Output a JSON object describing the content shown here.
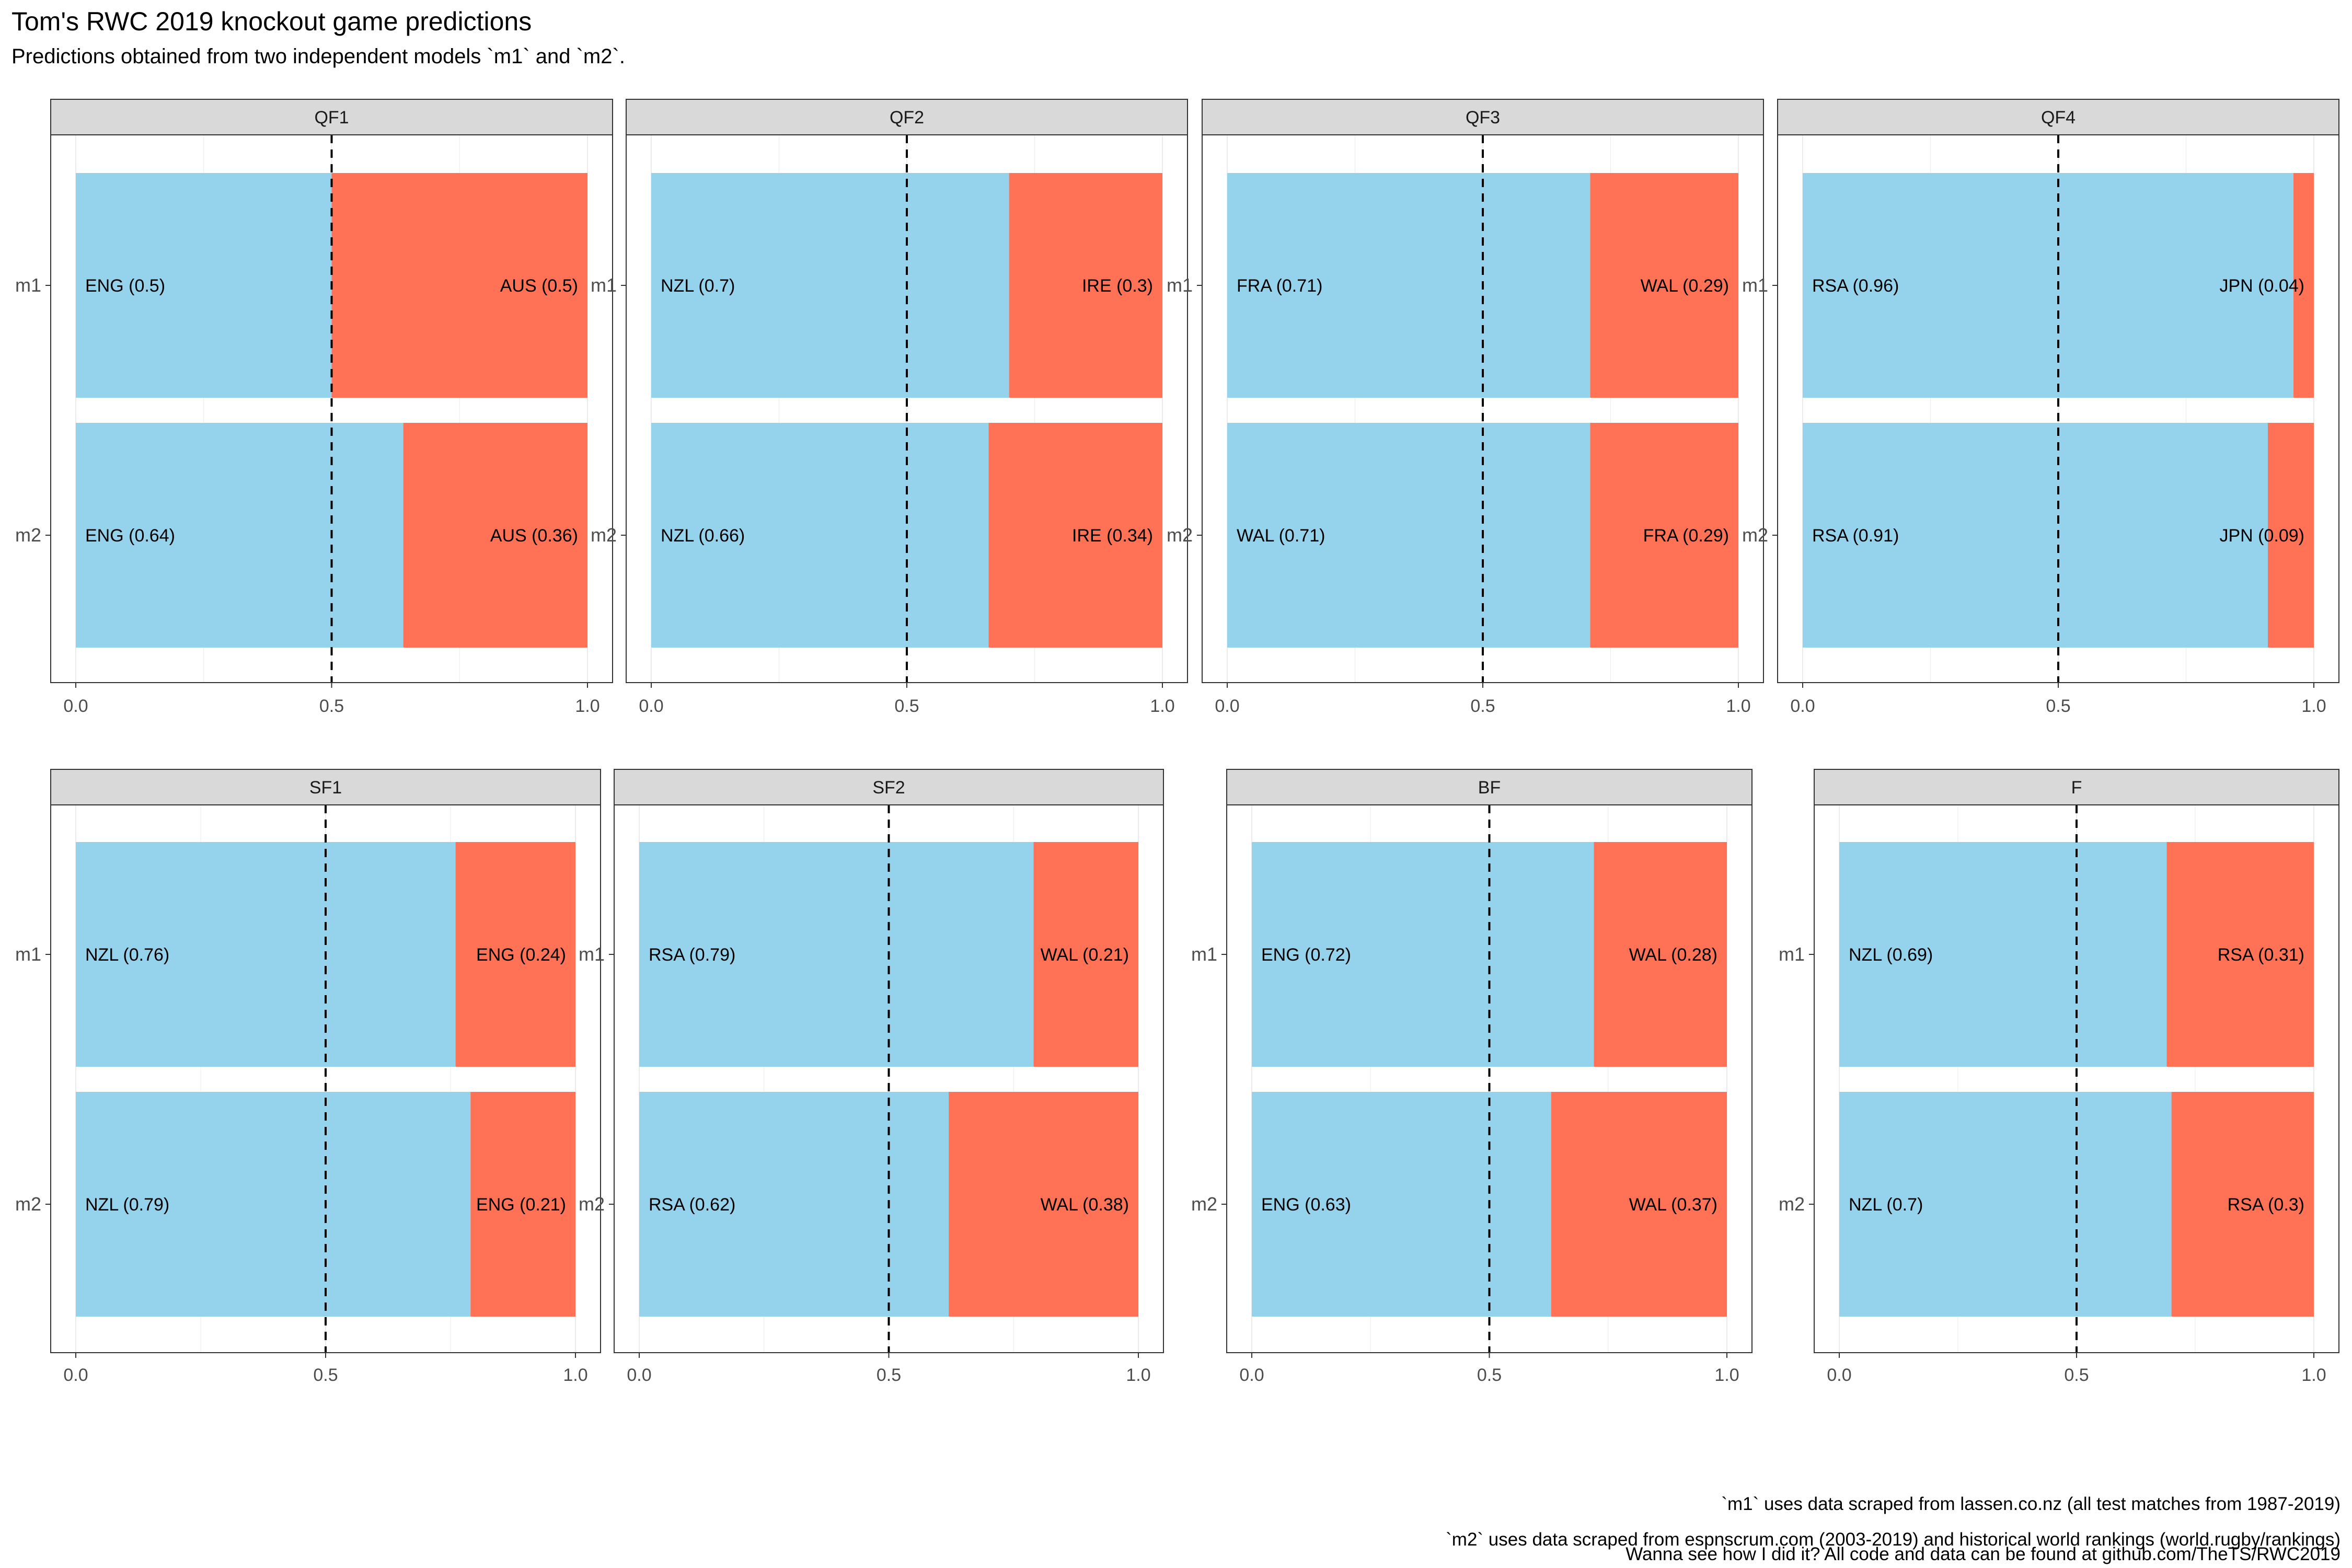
{
  "title": "Tom's RWC 2019 knockout game predictions",
  "subtitle": "Predictions obtained from two independent models `m1` and `m2`.",
  "captions": [
    "`m1` uses data scraped from lassen.co.nz (all test matches from 1987-2019)",
    "`m2` uses data scraped from espnscrum.com (2003-2019) and historical world rankings (world.rugby/rankings)",
    "Wanna see how I did it? All code and data can be found at github.com/TheTS/RWC2019"
  ],
  "colors": {
    "win": "#95D2EC",
    "lose": "#FF7256",
    "strip": "#D9D9D9",
    "reference_line": "#000000"
  },
  "chart_data": {
    "type": "bar",
    "orientation": "horizontal stacked, faceted",
    "x_ticks": [
      "0.0",
      "0.5",
      "1.0"
    ],
    "xlim": [
      0,
      1
    ],
    "reference_line": 0.5,
    "models": [
      "m1",
      "m2"
    ],
    "facets": [
      {
        "name": "QF1",
        "rows": [
          {
            "model": "m1",
            "left": "ENG (0.5)",
            "left_value": 0.5,
            "right": "AUS (0.5)",
            "right_value": 0.5
          },
          {
            "model": "m2",
            "left": "ENG (0.64)",
            "left_value": 0.64,
            "right": "AUS (0.36)",
            "right_value": 0.36
          }
        ]
      },
      {
        "name": "QF2",
        "rows": [
          {
            "model": "m1",
            "left": "NZL (0.7)",
            "left_value": 0.7,
            "right": "IRE (0.3)",
            "right_value": 0.3
          },
          {
            "model": "m2",
            "left": "NZL (0.66)",
            "left_value": 0.66,
            "right": "IRE (0.34)",
            "right_value": 0.34
          }
        ]
      },
      {
        "name": "QF3",
        "rows": [
          {
            "model": "m1",
            "left": "FRA (0.71)",
            "left_value": 0.71,
            "right": "WAL (0.29)",
            "right_value": 0.29
          },
          {
            "model": "m2",
            "left": "WAL (0.71)",
            "left_value": 0.71,
            "right": "FRA (0.29)",
            "right_value": 0.29
          }
        ]
      },
      {
        "name": "QF4",
        "rows": [
          {
            "model": "m1",
            "left": "RSA (0.96)",
            "left_value": 0.96,
            "right": "JPN (0.04)",
            "right_value": 0.04
          },
          {
            "model": "m2",
            "left": "RSA (0.91)",
            "left_value": 0.91,
            "right": "JPN (0.09)",
            "right_value": 0.09
          }
        ]
      },
      {
        "name": "SF1",
        "rows": [
          {
            "model": "m1",
            "left": "NZL (0.76)",
            "left_value": 0.76,
            "right": "ENG (0.24)",
            "right_value": 0.24
          },
          {
            "model": "m2",
            "left": "NZL (0.79)",
            "left_value": 0.79,
            "right": "ENG (0.21)",
            "right_value": 0.21
          }
        ]
      },
      {
        "name": "SF2",
        "rows": [
          {
            "model": "m1",
            "left": "RSA (0.79)",
            "left_value": 0.79,
            "right": "WAL (0.21)",
            "right_value": 0.21
          },
          {
            "model": "m2",
            "left": "RSA (0.62)",
            "left_value": 0.62,
            "right": "WAL (0.38)",
            "right_value": 0.38
          }
        ]
      },
      {
        "name": "BF",
        "rows": [
          {
            "model": "m1",
            "left": "ENG (0.72)",
            "left_value": 0.72,
            "right": "WAL (0.28)",
            "right_value": 0.28
          },
          {
            "model": "m2",
            "left": "ENG (0.63)",
            "left_value": 0.63,
            "right": "WAL (0.37)",
            "right_value": 0.37
          }
        ]
      },
      {
        "name": "F",
        "rows": [
          {
            "model": "m1",
            "left": "NZL (0.69)",
            "left_value": 0.69,
            "right": "RSA (0.31)",
            "right_value": 0.31
          },
          {
            "model": "m2",
            "left": "NZL (0.7)",
            "left_value": 0.7,
            "right": "RSA (0.3)",
            "right_value": 0.3
          }
        ]
      }
    ]
  }
}
